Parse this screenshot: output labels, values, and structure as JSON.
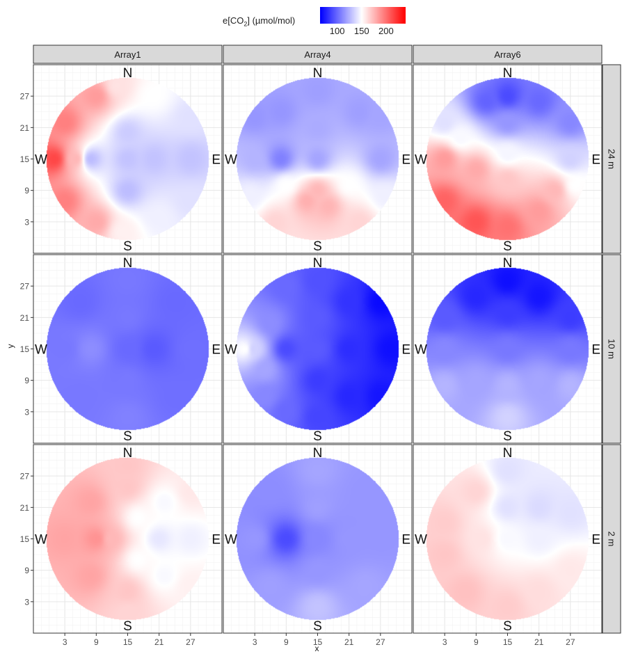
{
  "chart_data": {
    "type": "heatmap",
    "legend": {
      "title_prefix": "e[CO",
      "title_sub": "2",
      "title_suffix": "] (µmol/mol)",
      "ticks": [
        100,
        150,
        200
      ],
      "range": [
        65,
        240
      ],
      "midpoint": 150,
      "colors": {
        "low": "#0000ff",
        "mid": "#ffffff",
        "high": "#ff0000"
      }
    },
    "columns": [
      "Array1",
      "Array4",
      "Array6"
    ],
    "rows": [
      "24 m",
      "10 m",
      "2 m"
    ],
    "xlabel": "x",
    "ylabel": "y",
    "x_ticks": [
      3,
      9,
      15,
      21,
      27
    ],
    "y_ticks": [
      3,
      9,
      15,
      21,
      27
    ],
    "xlim": [
      -3,
      33
    ],
    "ylim": [
      -3,
      33
    ],
    "compass": {
      "N": "N",
      "S": "S",
      "E": "E",
      "W": "W"
    },
    "circle": {
      "center": [
        15,
        15
      ],
      "radius": 15.5
    },
    "panels": [
      {
        "column": "Array1",
        "row": "24 m",
        "points": [
          [
            15,
            15,
            130
          ],
          [
            8,
            15,
            128
          ],
          [
            20,
            15,
            130
          ],
          [
            15,
            20,
            133
          ],
          [
            15,
            9,
            128
          ],
          [
            27,
            15,
            130
          ],
          [
            1,
            15,
            215
          ],
          [
            3,
            22,
            195
          ],
          [
            3,
            7,
            195
          ],
          [
            9,
            27,
            185
          ],
          [
            9,
            3,
            180
          ],
          [
            13,
            29,
            160
          ],
          [
            14,
            1,
            155
          ],
          [
            5,
            15,
            175
          ],
          [
            20,
            27,
            150
          ],
          [
            21,
            4,
            145
          ],
          [
            27,
            23,
            140
          ],
          [
            27,
            7,
            140
          ]
        ]
      },
      {
        "column": "Array4",
        "row": "24 m",
        "points": [
          [
            15,
            15,
            120
          ],
          [
            8,
            15,
            108
          ],
          [
            15,
            21,
            122
          ],
          [
            3,
            15,
            125
          ],
          [
            27,
            15,
            120
          ],
          [
            8,
            24,
            115
          ],
          [
            15,
            28,
            118
          ],
          [
            23,
            24,
            118
          ],
          [
            15,
            9,
            175
          ],
          [
            13,
            7,
            178
          ],
          [
            17,
            6,
            176
          ],
          [
            7,
            3,
            165
          ],
          [
            23,
            3,
            165
          ],
          [
            21,
            10,
            150
          ],
          [
            9,
            10,
            150
          ],
          [
            2,
            8,
            145
          ],
          [
            28,
            8,
            145
          ],
          [
            3,
            23,
            115
          ],
          [
            27,
            23,
            120
          ]
        ]
      },
      {
        "column": "Array6",
        "row": "24 m",
        "points": [
          [
            15,
            27,
            90
          ],
          [
            11,
            26,
            98
          ],
          [
            21,
            26,
            100
          ],
          [
            15,
            22,
            115
          ],
          [
            27,
            22,
            110
          ],
          [
            3,
            22,
            140
          ],
          [
            6,
            19,
            148
          ],
          [
            15,
            16,
            147
          ],
          [
            27,
            15,
            135
          ],
          [
            28,
            10,
            150
          ],
          [
            3,
            15,
            185
          ],
          [
            9,
            13,
            180
          ],
          [
            15,
            11,
            170
          ],
          [
            3,
            7,
            205
          ],
          [
            9,
            3,
            210
          ],
          [
            15,
            2,
            200
          ],
          [
            21,
            5,
            185
          ],
          [
            24,
            9,
            175
          ]
        ]
      },
      {
        "column": "Array1",
        "row": "10 m",
        "points": [
          [
            15,
            15,
            100
          ],
          [
            8,
            15,
            112
          ],
          [
            20,
            15,
            95
          ],
          [
            15,
            21,
            105
          ],
          [
            15,
            9,
            105
          ],
          [
            3,
            15,
            105
          ],
          [
            27,
            15,
            102
          ],
          [
            15,
            28,
            105
          ],
          [
            15,
            2,
            108
          ],
          [
            6,
            24,
            100
          ],
          [
            24,
            24,
            100
          ],
          [
            6,
            6,
            105
          ],
          [
            24,
            6,
            102
          ]
        ]
      },
      {
        "column": "Array4",
        "row": "10 m",
        "points": [
          [
            15,
            15,
            95
          ],
          [
            9,
            15,
            90
          ],
          [
            15,
            9,
            85
          ],
          [
            15,
            21,
            95
          ],
          [
            1,
            15,
            150
          ],
          [
            3,
            15,
            135
          ],
          [
            5,
            11,
            120
          ],
          [
            6,
            20,
            112
          ],
          [
            9,
            27,
            100
          ],
          [
            15,
            28,
            92
          ],
          [
            21,
            24,
            82
          ],
          [
            27,
            24,
            68
          ],
          [
            29,
            15,
            70
          ],
          [
            27,
            6,
            72
          ],
          [
            21,
            6,
            78
          ],
          [
            15,
            2,
            88
          ],
          [
            9,
            3,
            100
          ],
          [
            21,
            15,
            80
          ],
          [
            5,
            6,
            110
          ]
        ]
      },
      {
        "column": "Array6",
        "row": "10 m",
        "points": [
          [
            15,
            28,
            70
          ],
          [
            21,
            25,
            72
          ],
          [
            9,
            25,
            78
          ],
          [
            15,
            22,
            85
          ],
          [
            3,
            21,
            95
          ],
          [
            27,
            21,
            85
          ],
          [
            15,
            15,
            105
          ],
          [
            3,
            15,
            110
          ],
          [
            27,
            15,
            105
          ],
          [
            9,
            9,
            120
          ],
          [
            21,
            9,
            120
          ],
          [
            15,
            8,
            125
          ],
          [
            15,
            2,
            135
          ],
          [
            3,
            8,
            125
          ],
          [
            27,
            8,
            125
          ]
        ]
      },
      {
        "column": "Array1",
        "row": "2 m",
        "points": [
          [
            21,
            15,
            142
          ],
          [
            17,
            19,
            150
          ],
          [
            17,
            11,
            150
          ],
          [
            27,
            15,
            145
          ],
          [
            22,
            22,
            148
          ],
          [
            22,
            8,
            148
          ],
          [
            15,
            25,
            170
          ],
          [
            15,
            5,
            170
          ],
          [
            9,
            15,
            188
          ],
          [
            3,
            15,
            182
          ],
          [
            8,
            8,
            182
          ],
          [
            8,
            22,
            182
          ],
          [
            15,
            29,
            170
          ],
          [
            15,
            1,
            165
          ],
          [
            27,
            24,
            158
          ],
          [
            27,
            6,
            155
          ],
          [
            12,
            15,
            175
          ]
        ]
      },
      {
        "column": "Array4",
        "row": "2 m",
        "points": [
          [
            9,
            15,
            90
          ],
          [
            15,
            15,
            110
          ],
          [
            21,
            15,
            115
          ],
          [
            15,
            21,
            118
          ],
          [
            15,
            9,
            115
          ],
          [
            3,
            15,
            115
          ],
          [
            27,
            15,
            115
          ],
          [
            15,
            28,
            120
          ],
          [
            15,
            2,
            130
          ],
          [
            6,
            24,
            112
          ],
          [
            24,
            24,
            115
          ],
          [
            6,
            6,
            118
          ],
          [
            24,
            6,
            120
          ]
        ]
      },
      {
        "column": "Array6",
        "row": "2 m",
        "points": [
          [
            15,
            15,
            148
          ],
          [
            21,
            15,
            145
          ],
          [
            15,
            21,
            140
          ],
          [
            21,
            21,
            138
          ],
          [
            27,
            20,
            140
          ],
          [
            15,
            28,
            140
          ],
          [
            9,
            24,
            165
          ],
          [
            3,
            18,
            168
          ],
          [
            3,
            12,
            170
          ],
          [
            7,
            5,
            172
          ],
          [
            15,
            2,
            168
          ],
          [
            21,
            5,
            162
          ],
          [
            27,
            9,
            158
          ],
          [
            10,
            15,
            160
          ]
        ]
      }
    ]
  }
}
